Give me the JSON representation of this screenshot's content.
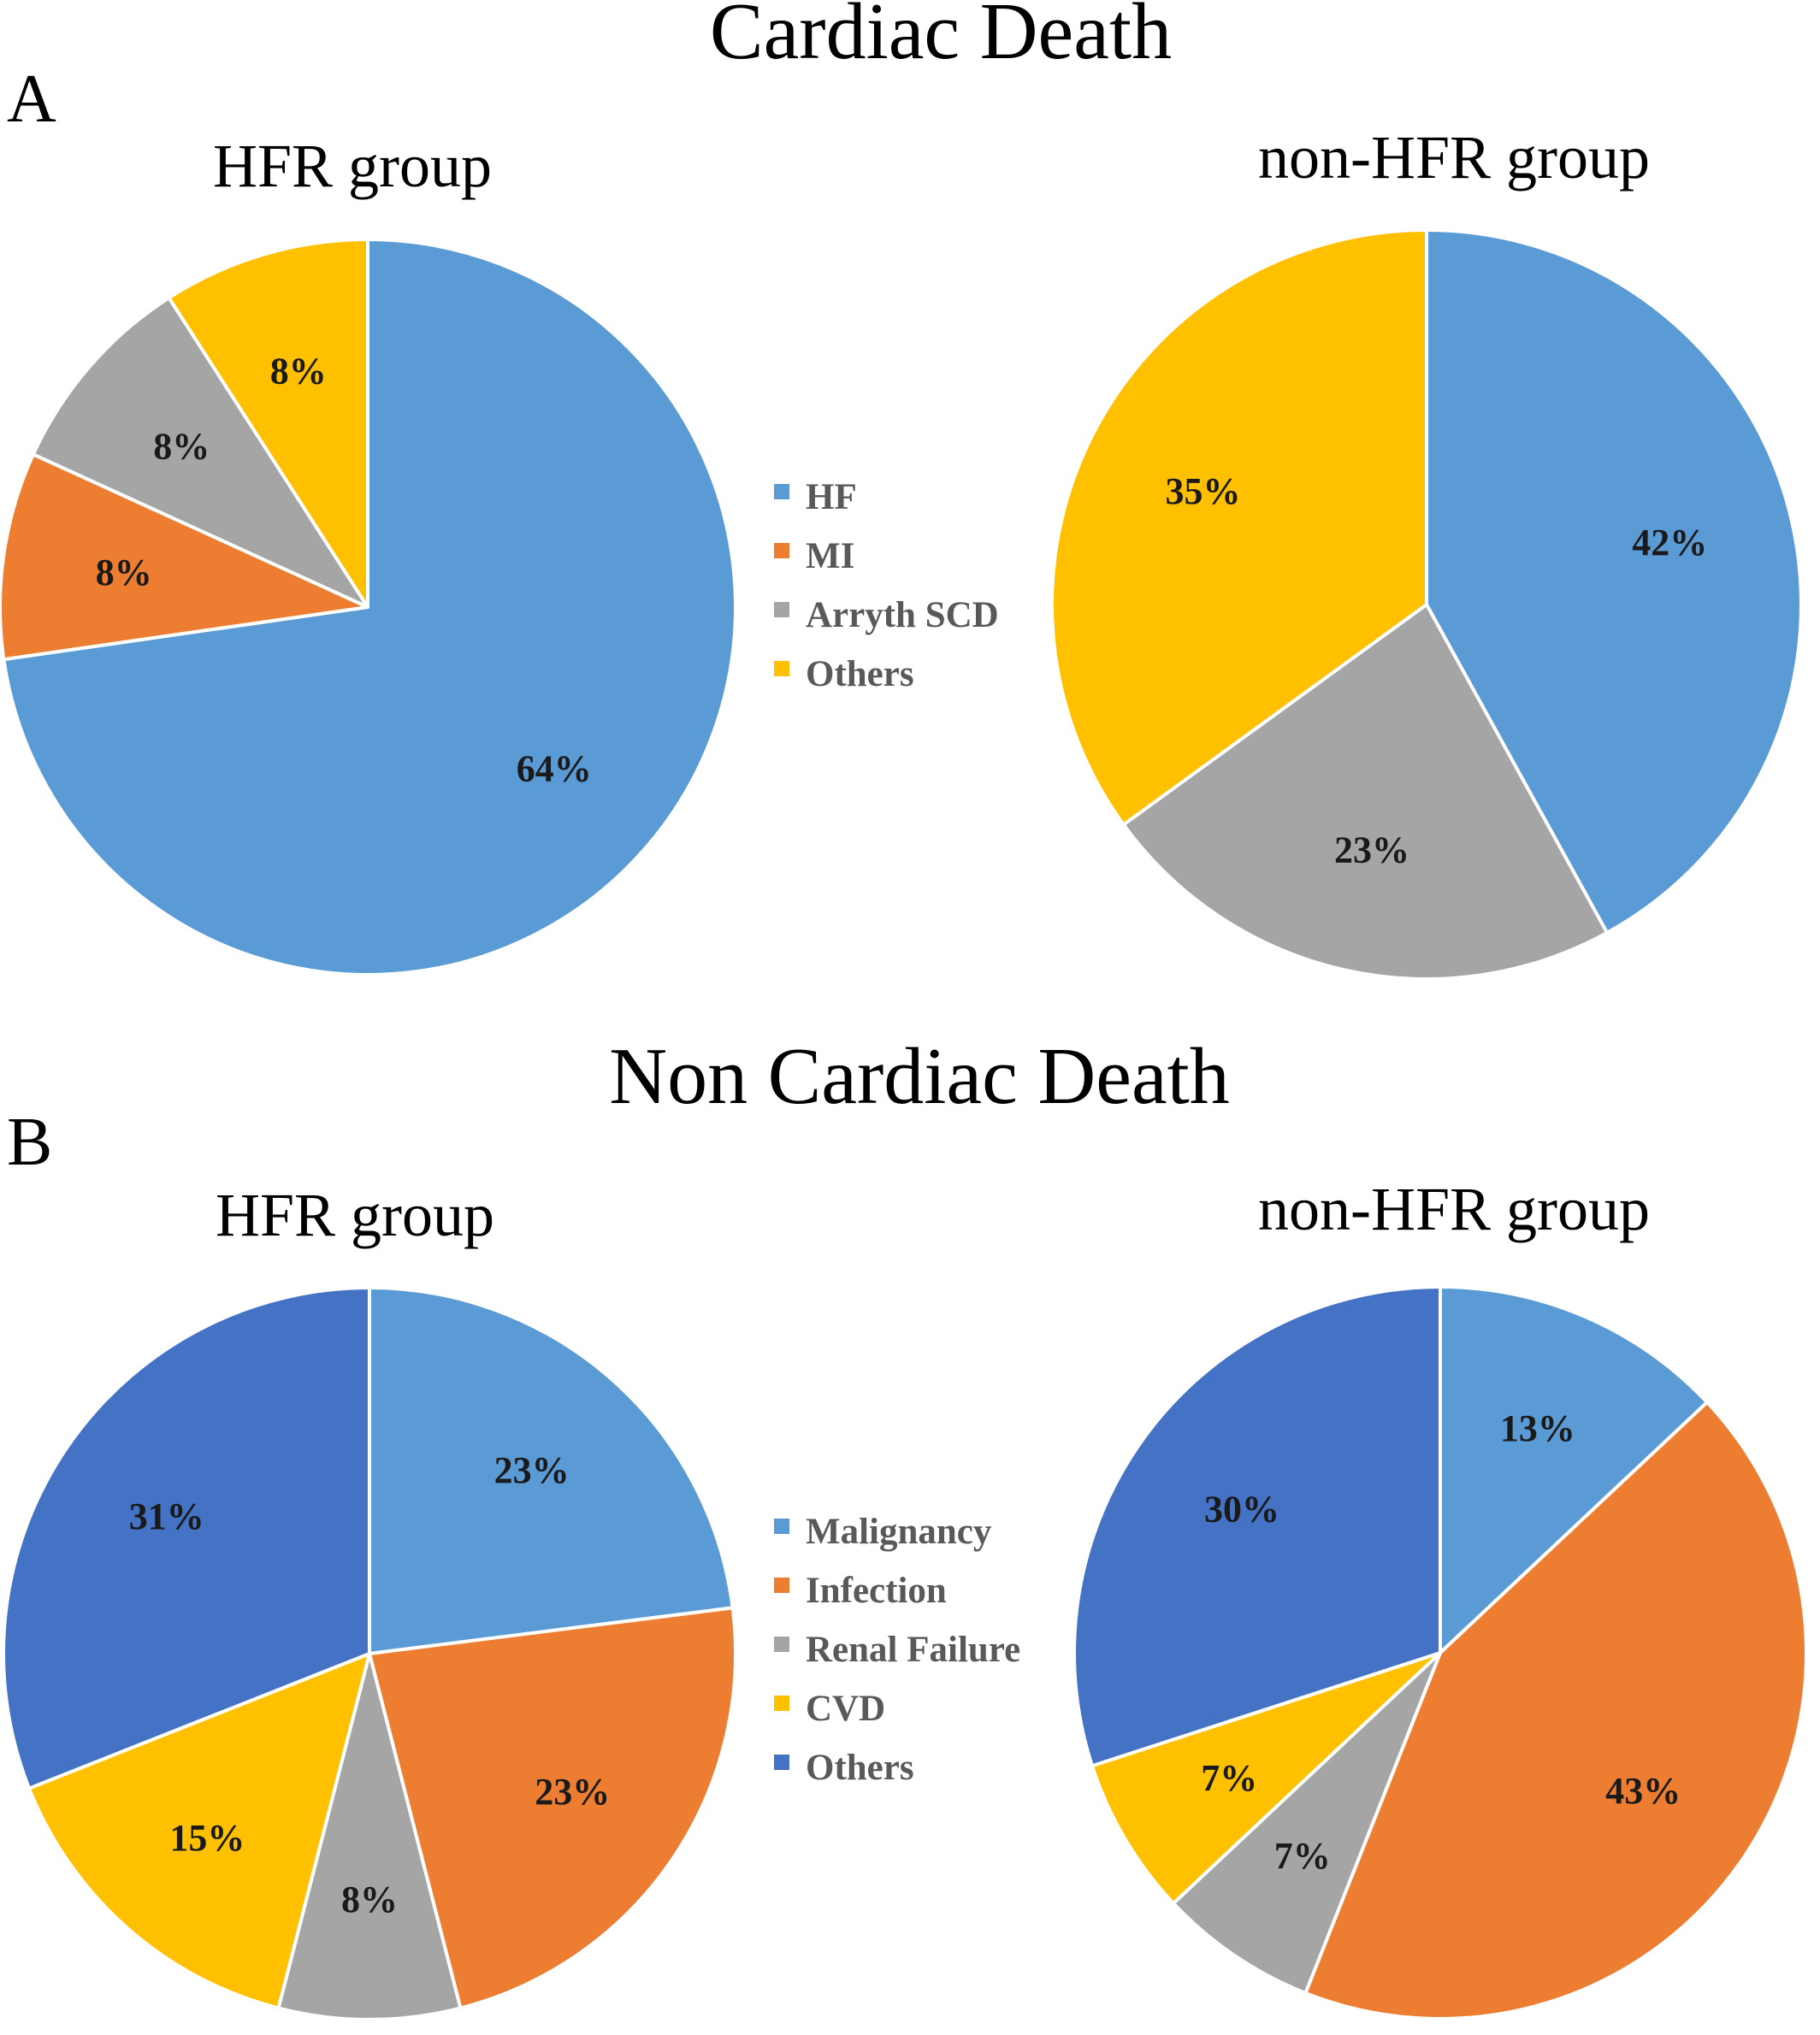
{
  "panels": [
    {
      "letter": "A",
      "title": "Cardiac Death",
      "legend": [
        {
          "label": "HF",
          "color": "#5b9bd5"
        },
        {
          "label": "MI",
          "color": "#ed7d31"
        },
        {
          "label": "Arryth SCD",
          "color": "#a5a5a5"
        },
        {
          "label": "Others",
          "color": "#ffc000"
        }
      ]
    },
    {
      "letter": "B",
      "title": "Non Cardiac Death",
      "legend": [
        {
          "label": "Malignancy",
          "color": "#5b9bd5"
        },
        {
          "label": "Infection",
          "color": "#ed7d31"
        },
        {
          "label": "Renal Failure",
          "color": "#a5a5a5"
        },
        {
          "label": "CVD",
          "color": "#ffc000"
        },
        {
          "label": "Others",
          "color": "#4472c4"
        }
      ]
    }
  ],
  "chart_data": [
    {
      "type": "pie",
      "title": "HFR group",
      "panel": "Cardiac Death",
      "slices": [
        {
          "category": "HF",
          "value": 64,
          "label": "64%",
          "color": "#5b9bd5"
        },
        {
          "category": "MI",
          "value": 8,
          "label": "8%",
          "color": "#ed7d31"
        },
        {
          "category": "Arryth SCD",
          "value": 8,
          "label": "8%",
          "color": "#a5a5a5"
        },
        {
          "category": "Others",
          "value": 8,
          "label": "8%",
          "color": "#ffc000"
        }
      ]
    },
    {
      "type": "pie",
      "title": "non-HFR group",
      "panel": "Cardiac Death",
      "slices": [
        {
          "category": "HF",
          "value": 42,
          "label": "42%",
          "color": "#5b9bd5"
        },
        {
          "category": "MI",
          "value": 0,
          "label": "",
          "color": "#ed7d31"
        },
        {
          "category": "Arryth SCD",
          "value": 23,
          "label": "23%",
          "color": "#a5a5a5"
        },
        {
          "category": "Others",
          "value": 35,
          "label": "35%",
          "color": "#ffc000"
        }
      ]
    },
    {
      "type": "pie",
      "title": "HFR group",
      "panel": "Non Cardiac Death",
      "slices": [
        {
          "category": "Malignancy",
          "value": 23,
          "label": "23%",
          "color": "#5b9bd5"
        },
        {
          "category": "Infection",
          "value": 23,
          "label": "23%",
          "color": "#ed7d31"
        },
        {
          "category": "Renal Failure",
          "value": 8,
          "label": "8%",
          "color": "#a5a5a5"
        },
        {
          "category": "CVD",
          "value": 15,
          "label": "15%",
          "color": "#ffc000"
        },
        {
          "category": "Others",
          "value": 31,
          "label": "31%",
          "color": "#4472c4"
        }
      ]
    },
    {
      "type": "pie",
      "title": "non-HFR group",
      "panel": "Non Cardiac Death",
      "slices": [
        {
          "category": "Malignancy",
          "value": 13,
          "label": "13%",
          "color": "#5b9bd5"
        },
        {
          "category": "Infection",
          "value": 43,
          "label": "43%",
          "color": "#ed7d31"
        },
        {
          "category": "Renal Failure",
          "value": 7,
          "label": "7%",
          "color": "#a5a5a5"
        },
        {
          "category": "CVD",
          "value": 7,
          "label": "7%",
          "color": "#ffc000"
        },
        {
          "category": "Others",
          "value": 30,
          "label": "30%",
          "color": "#4472c4"
        }
      ]
    }
  ]
}
